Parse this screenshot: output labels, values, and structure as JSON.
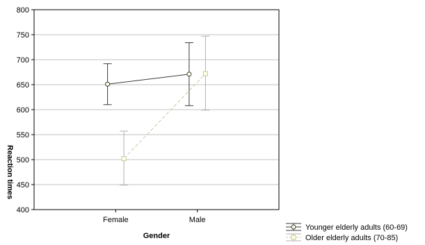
{
  "chart_data": {
    "type": "line",
    "xlabel": "Gender",
    "ylabel": "Reaction times",
    "categories": [
      "Female",
      "Male"
    ],
    "ylim": [
      400,
      800
    ],
    "yticks": [
      400,
      450,
      500,
      550,
      600,
      650,
      700,
      750,
      800
    ],
    "grid": true,
    "legend_position": "bottom-right",
    "series": [
      {
        "name": "Younger elderly adults (60-69)",
        "values": [
          651,
          671
        ],
        "error_low": [
          610,
          608
        ],
        "error_high": [
          692,
          734
        ],
        "color": "#3a3a3a",
        "line_style": "solid",
        "marker": "circle",
        "marker_fill": "#ffffe6",
        "x_offset": -0.1
      },
      {
        "name": "Older elderly adults (70-85)",
        "values": [
          502,
          672
        ],
        "error_low": [
          449,
          599
        ],
        "error_high": [
          557,
          747
        ],
        "color": "#c8c8a0",
        "error_color": "#b0b0b0",
        "line_style": "dashed",
        "marker": "square",
        "marker_fill": "#ffffe6",
        "x_offset": 0.1
      }
    ]
  }
}
